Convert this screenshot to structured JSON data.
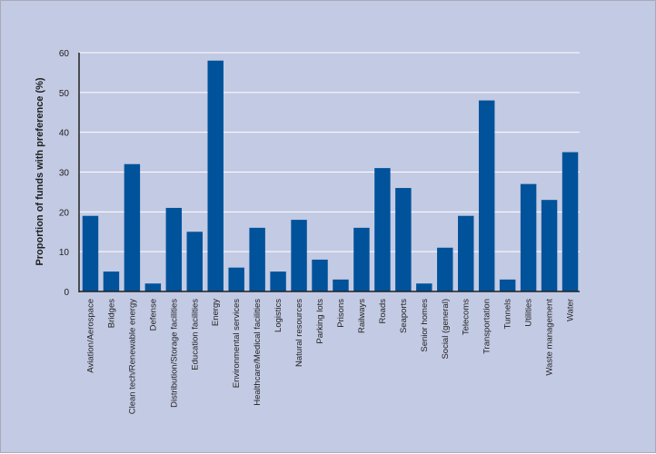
{
  "chart_data": {
    "type": "bar",
    "title": "",
    "xlabel": "",
    "ylabel": "Proportion of funds with preference (%)",
    "ylim": [
      0,
      60
    ],
    "yticks": [
      0,
      10,
      20,
      30,
      40,
      50,
      60
    ],
    "grid": true,
    "bar_color": "#00529b",
    "background": "#c3cae3",
    "categories": [
      "Aviation/Aerospace",
      "Bridges",
      "Clean tech/Renewable energy",
      "Defense",
      "Distribution/Storage facilities",
      "Education facilities",
      "Energy",
      "Environmental services",
      "Healthcare/Medical facilities",
      "Logistics",
      "Natural resources",
      "Parking lots",
      "Prisons",
      "Railways",
      "Roads",
      "Seaports",
      "Senior homes",
      "Social (general)",
      "Telecoms",
      "Transportation",
      "Tunnels",
      "Utilities",
      "Waste management",
      "Water"
    ],
    "values": [
      19,
      5,
      32,
      2,
      21,
      15,
      58,
      6,
      16,
      5,
      18,
      8,
      3,
      16,
      31,
      26,
      2,
      11,
      19,
      48,
      3,
      27,
      23,
      35
    ]
  }
}
